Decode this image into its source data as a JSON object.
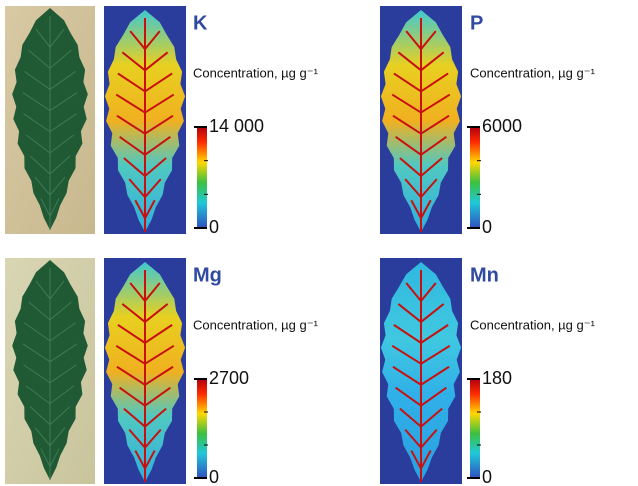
{
  "panels": [
    {
      "element": "K",
      "unit_label": "Concentration, µg g⁻¹",
      "scale_max": "14 000",
      "scale_min": "0"
    },
    {
      "element": "P",
      "unit_label": "Concentration, µg g⁻¹",
      "scale_max": "6000",
      "scale_min": "0"
    },
    {
      "element": "Mg",
      "unit_label": "Concentration, µg g⁻¹",
      "scale_max": "2700",
      "scale_min": "0"
    },
    {
      "element": "Mn",
      "unit_label": "Concentration, µg g⁻¹",
      "scale_max": "180",
      "scale_min": "0"
    }
  ]
}
